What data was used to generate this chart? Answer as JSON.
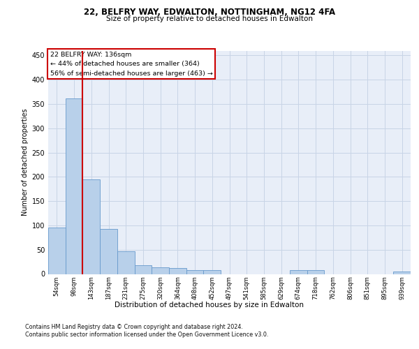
{
  "title1": "22, BELFRY WAY, EDWALTON, NOTTINGHAM, NG12 4FA",
  "title2": "Size of property relative to detached houses in Edwalton",
  "xlabel": "Distribution of detached houses by size in Edwalton",
  "ylabel": "Number of detached properties",
  "footer1": "Contains HM Land Registry data © Crown copyright and database right 2024.",
  "footer2": "Contains public sector information licensed under the Open Government Licence v3.0.",
  "bin_labels": [
    "54sqm",
    "98sqm",
    "143sqm",
    "187sqm",
    "231sqm",
    "275sqm",
    "320sqm",
    "364sqm",
    "408sqm",
    "452sqm",
    "497sqm",
    "541sqm",
    "585sqm",
    "629sqm",
    "674sqm",
    "718sqm",
    "762sqm",
    "806sqm",
    "851sqm",
    "895sqm",
    "939sqm"
  ],
  "bar_values": [
    95,
    362,
    195,
    93,
    47,
    18,
    14,
    12,
    8,
    8,
    0,
    0,
    0,
    0,
    8,
    8,
    0,
    0,
    0,
    0,
    5
  ],
  "bar_color": "#b8d0ea",
  "bar_edge_color": "#6699cc",
  "grid_color": "#c8d4e6",
  "line_color": "#cc0000",
  "annotation_text": "22 BELFRY WAY: 136sqm\n← 44% of detached houses are smaller (364)\n56% of semi-detached houses are larger (463) →",
  "annotation_box_color": "#ffffff",
  "annotation_box_edge": "#cc0000",
  "ylim": [
    0,
    460
  ],
  "yticks": [
    0,
    50,
    100,
    150,
    200,
    250,
    300,
    350,
    400,
    450
  ],
  "background_color": "#e8eef8"
}
